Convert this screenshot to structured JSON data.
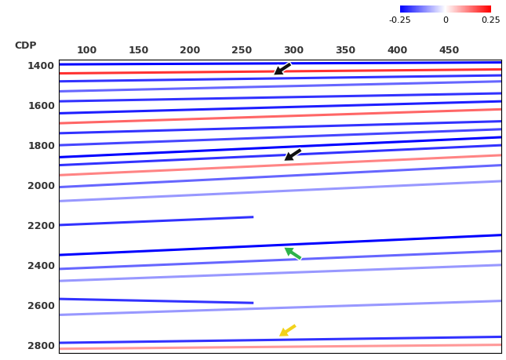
{
  "chart_data": {
    "type": "seismic",
    "x_label": "CDP",
    "xlim": [
      73,
      500
    ],
    "xticks": [
      100,
      150,
      200,
      250,
      300,
      350,
      400,
      450
    ],
    "ylim": [
      2840,
      1370
    ],
    "yticks": [
      1400,
      1600,
      1800,
      2000,
      2200,
      2400,
      2600,
      2800
    ],
    "colorbar": {
      "range": [
        -0.25,
        0.25
      ],
      "ticks": [
        -0.25,
        0,
        0.25
      ]
    },
    "reflectors": [
      {
        "cdp": [
          73,
          500
        ],
        "time": [
          1395,
          1385
        ],
        "amplitude": -0.25
      },
      {
        "cdp": [
          73,
          500
        ],
        "time": [
          1440,
          1420
        ],
        "amplitude": 0.2
      },
      {
        "cdp": [
          73,
          500
        ],
        "time": [
          1480,
          1450
        ],
        "amplitude": -0.2
      },
      {
        "cdp": [
          73,
          500
        ],
        "time": [
          1530,
          1480
        ],
        "amplitude": -0.15
      },
      {
        "cdp": [
          73,
          500
        ],
        "time": [
          1580,
          1540
        ],
        "amplitude": -0.2
      },
      {
        "cdp": [
          73,
          500
        ],
        "time": [
          1640,
          1580
        ],
        "amplitude": -0.22
      },
      {
        "cdp": [
          73,
          500
        ],
        "time": [
          1690,
          1620
        ],
        "amplitude": 0.15
      },
      {
        "cdp": [
          73,
          500
        ],
        "time": [
          1740,
          1680
        ],
        "amplitude": -0.2
      },
      {
        "cdp": [
          73,
          500
        ],
        "time": [
          1800,
          1720
        ],
        "amplitude": -0.18
      },
      {
        "cdp": [
          73,
          500
        ],
        "time": [
          1860,
          1760
        ],
        "amplitude": -0.25
      },
      {
        "cdp": [
          73,
          500
        ],
        "time": [
          1900,
          1800
        ],
        "amplitude": -0.2
      },
      {
        "cdp": [
          73,
          500
        ],
        "time": [
          1950,
          1850
        ],
        "amplitude": 0.12
      },
      {
        "cdp": [
          73,
          500
        ],
        "time": [
          2010,
          1900
        ],
        "amplitude": -0.15
      },
      {
        "cdp": [
          73,
          500
        ],
        "time": [
          2080,
          1980
        ],
        "amplitude": -0.1
      },
      {
        "cdp": [
          73,
          260
        ],
        "time": [
          2200,
          2160
        ],
        "amplitude": -0.2
      },
      {
        "cdp": [
          73,
          500
        ],
        "time": [
          2350,
          2250
        ],
        "amplitude": -0.25
      },
      {
        "cdp": [
          73,
          500
        ],
        "time": [
          2420,
          2330
        ],
        "amplitude": -0.15
      },
      {
        "cdp": [
          73,
          500
        ],
        "time": [
          2480,
          2400
        ],
        "amplitude": -0.1
      },
      {
        "cdp": [
          73,
          260
        ],
        "time": [
          2570,
          2590
        ],
        "amplitude": -0.2
      },
      {
        "cdp": [
          73,
          500
        ],
        "time": [
          2650,
          2580
        ],
        "amplitude": -0.1
      },
      {
        "cdp": [
          73,
          500
        ],
        "time": [
          2790,
          2760
        ],
        "amplitude": -0.2
      },
      {
        "cdp": [
          73,
          500
        ],
        "time": [
          2820,
          2800
        ],
        "amplitude": 0.1
      }
    ],
    "arrows": [
      {
        "cdp": 280,
        "time": 1450,
        "color": "#111111",
        "direction": "down-left"
      },
      {
        "cdp": 290,
        "time": 1880,
        "color": "#111111",
        "direction": "down-left"
      },
      {
        "cdp": 290,
        "time": 2310,
        "color": "#2db34a",
        "direction": "up-left"
      },
      {
        "cdp": 285,
        "time": 2760,
        "color": "#f2d21b",
        "direction": "down-left"
      }
    ]
  }
}
